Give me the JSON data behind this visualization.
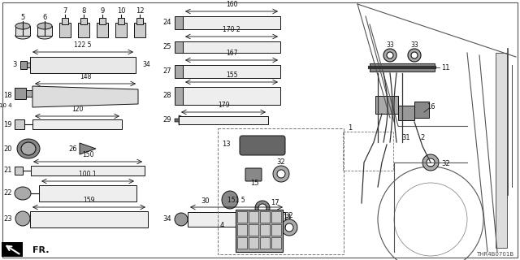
{
  "bg_color": "#ffffff",
  "diagram_id": "THR4B0701B",
  "figw": 6.4,
  "figh": 3.2,
  "dpi": 100
}
